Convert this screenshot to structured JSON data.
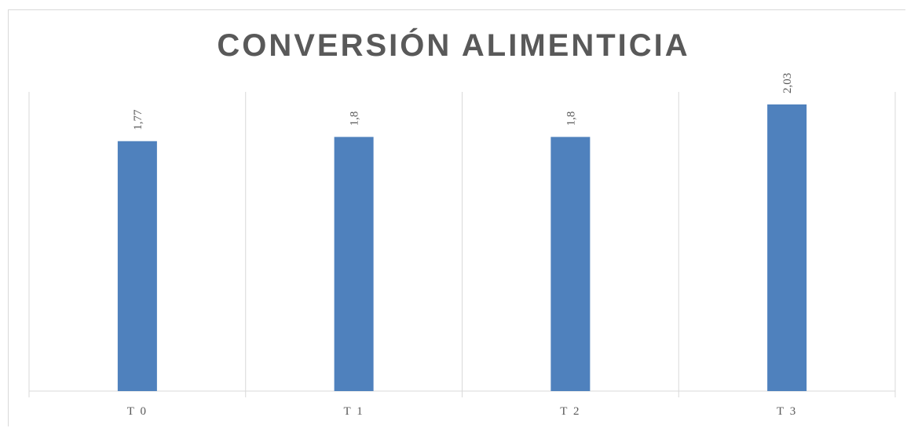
{
  "chart_data": {
    "type": "bar",
    "title": "CONVERSIÓN ALIMENTICIA",
    "categories": [
      "T0",
      "T1",
      "T2",
      "T3"
    ],
    "tick_labels": [
      "T 0",
      "T 1",
      "T 2",
      "T 3"
    ],
    "values": [
      1.77,
      1.8,
      1.8,
      2.03
    ],
    "data_labels": [
      "1,77",
      "1,8",
      "1,8",
      "2,03"
    ],
    "xlabel": "",
    "ylabel": "",
    "ylim": [
      0,
      2.03
    ],
    "grid": "vertical category separators",
    "legend": "none",
    "bar_color": "#4f81bd",
    "grid_color": "#d9d9d9",
    "text_color": "#595959"
  }
}
